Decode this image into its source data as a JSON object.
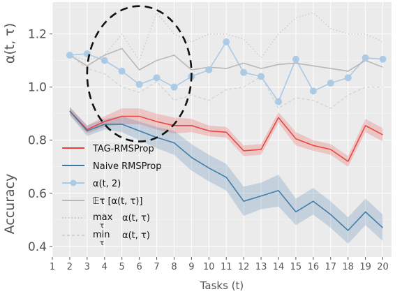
{
  "chart_data": {
    "type": "line",
    "xlabel": "Tasks (t)",
    "ylabel_top": "α(t, τ)",
    "ylabel_bottom": "Accuracy",
    "xlim": [
      1,
      20.5
    ],
    "ylim": [
      0.36,
      1.32
    ],
    "x_ticks": [
      1,
      2,
      3,
      4,
      5,
      6,
      7,
      8,
      9,
      10,
      11,
      12,
      13,
      14,
      15,
      16,
      17,
      18,
      19,
      20
    ],
    "y_ticks": [
      0.4,
      0.6,
      0.8,
      1.0,
      1.2
    ],
    "y_tick_labels": [
      "0.4",
      "0.6",
      "0.8",
      "1.0",
      "1.2"
    ],
    "grid": true,
    "legend_position": "lower-left",
    "x": [
      2,
      3,
      4,
      5,
      6,
      7,
      8,
      9,
      10,
      11,
      12,
      13,
      14,
      15,
      16,
      17,
      18,
      19,
      20
    ],
    "series": [
      {
        "name": "TAG-RMSProp",
        "color": "#e8403a",
        "style": "solid",
        "values": [
          0.91,
          0.84,
          0.87,
          0.89,
          0.89,
          0.87,
          0.855,
          0.855,
          0.835,
          0.83,
          0.76,
          0.765,
          0.885,
          0.805,
          0.78,
          0.765,
          0.72,
          0.855,
          0.82
        ],
        "band": [
          0.015,
          0.015,
          0.02,
          0.03,
          0.03,
          0.03,
          0.03,
          0.025,
          0.02,
          0.02,
          0.02,
          0.02,
          0.02,
          0.025,
          0.02,
          0.02,
          0.02,
          0.025,
          0.025
        ]
      },
      {
        "name": "Naive RMSProp",
        "color": "#3a78a8",
        "style": "solid",
        "values": [
          0.91,
          0.835,
          0.86,
          0.86,
          0.835,
          0.81,
          0.79,
          0.735,
          0.695,
          0.66,
          0.57,
          0.59,
          0.61,
          0.53,
          0.57,
          0.52,
          0.46,
          0.53,
          0.47
        ],
        "band": [
          0.015,
          0.02,
          0.02,
          0.03,
          0.035,
          0.04,
          0.045,
          0.05,
          0.05,
          0.05,
          0.055,
          0.05,
          0.06,
          0.05,
          0.05,
          0.05,
          0.05,
          0.05,
          0.05
        ]
      },
      {
        "name": "α(t, 2)",
        "color": "#a9c9e6",
        "style": "marker-line",
        "values": [
          1.12,
          1.125,
          1.1,
          1.06,
          1.01,
          1.035,
          1.0,
          1.04,
          1.065,
          1.17,
          1.055,
          1.04,
          0.945,
          1.105,
          0.985,
          1.015,
          1.035,
          1.11,
          1.105
        ]
      },
      {
        "name": "𝔼τ  [α(t, τ)]",
        "color": "#b8b8b8",
        "style": "solid",
        "values": [
          1.12,
          1.08,
          1.12,
          1.145,
          1.065,
          1.1,
          1.12,
          1.065,
          1.075,
          1.07,
          1.09,
          1.07,
          1.085,
          1.09,
          1.08,
          1.07,
          1.06,
          1.1,
          1.075
        ]
      },
      {
        "name": "max α(t, τ)",
        "name_parts": [
          "max",
          "τ",
          "α(t, τ)"
        ],
        "color": "#c4c4c4",
        "style": "dotted",
        "values": [
          1.12,
          1.1,
          1.12,
          1.2,
          1.1,
          1.28,
          1.2,
          1.17,
          1.2,
          1.2,
          1.18,
          1.11,
          1.2,
          1.26,
          1.28,
          1.22,
          1.2,
          1.2,
          1.17
        ]
      },
      {
        "name": "min α(t, τ)",
        "name_parts": [
          "min",
          "τ",
          "α(t, τ)"
        ],
        "color": "#d0d0d0",
        "style": "dashed",
        "values": [
          1.12,
          1.07,
          1.05,
          1.0,
          0.98,
          1.02,
          0.95,
          0.97,
          0.95,
          0.99,
          1.0,
          1.04,
          0.92,
          0.96,
          0.95,
          0.92,
          0.97,
          1.0,
          1.0
        ]
      }
    ],
    "annotation": {
      "shape": "dashed-ellipse",
      "color": "#111111",
      "center_x": 6,
      "center_y": 1.05,
      "x_radius": 3.0,
      "y_radius": 0.255
    }
  }
}
